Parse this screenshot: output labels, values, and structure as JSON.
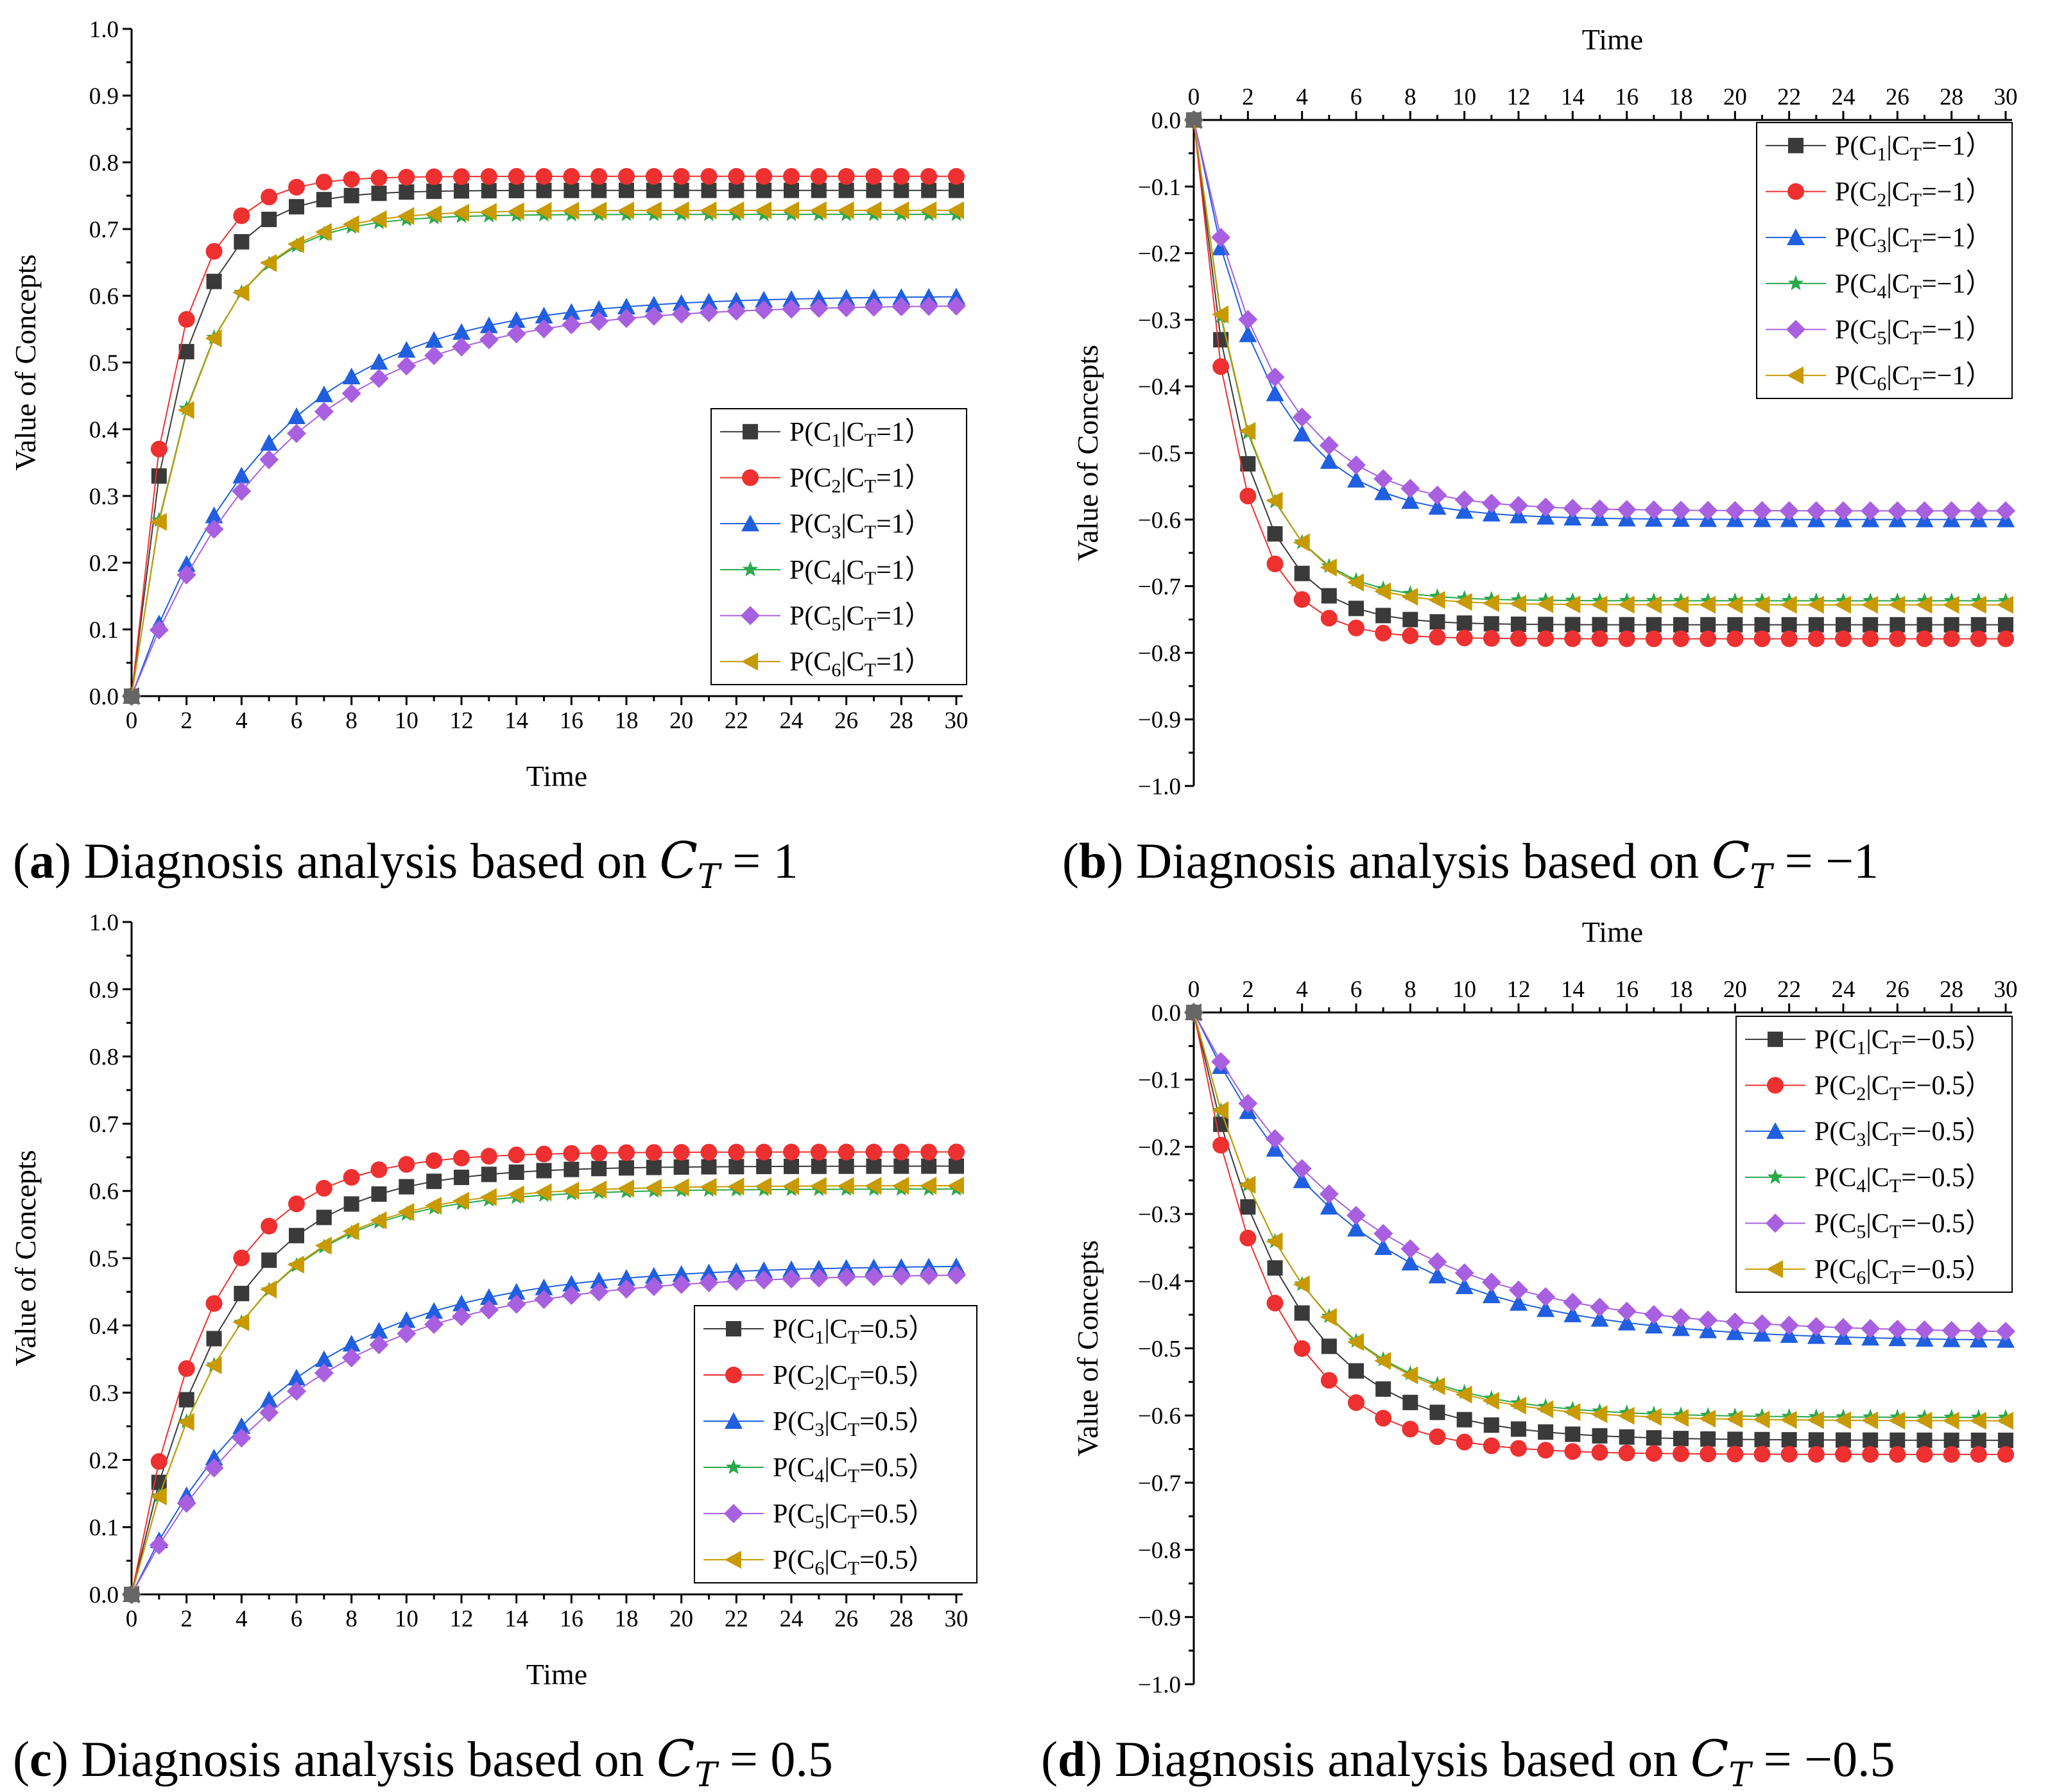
{
  "figure": {
    "x_axis_title": "Time",
    "y_axis_title": "Value of Concepts"
  },
  "colors": {
    "C1": "#3a3a3a",
    "C2": "#ee3030",
    "C3": "#1f5fe0",
    "C4": "#2aa84a",
    "C5": "#a860e0",
    "C6": "#c89a00"
  },
  "chart_data": [
    {
      "type": "line",
      "panel": "a",
      "caption": {
        "label": "a",
        "text": "Diagnosis analysis based on",
        "math": "C_T = 1"
      },
      "xlabel": "Time",
      "ylabel": "Value of Concepts",
      "xlim": [
        0,
        30
      ],
      "ylim": [
        0,
        1
      ],
      "x_ticks": [
        "0",
        "2",
        "4",
        "6",
        "8",
        "10",
        "12",
        "14",
        "16",
        "18",
        "20",
        "22",
        "24",
        "26",
        "28",
        "30"
      ],
      "y_ticks": [
        "0.0",
        "0.1",
        "0.2",
        "0.3",
        "0.4",
        "0.5",
        "0.6",
        "0.7",
        "0.8",
        "0.9",
        "1.0"
      ],
      "legend_position": "right-middle",
      "series": [
        {
          "name": "P(C1|CT=1)",
          "sub": "1",
          "cond": "=1",
          "color_key": "C1",
          "marker": "square",
          "final": 0.758,
          "tau": 1.75
        },
        {
          "name": "P(C2|CT=1)",
          "sub": "2",
          "cond": "=1",
          "color_key": "C2",
          "marker": "circle",
          "final": 0.779,
          "tau": 1.55
        },
        {
          "name": "P(C3|CT=1)",
          "sub": "3",
          "cond": "=1",
          "color_key": "C3",
          "marker": "triangle-up",
          "final": 0.6,
          "tau": 5.0
        },
        {
          "name": "P(C4|CT=1)",
          "sub": "4",
          "cond": "=1",
          "color_key": "C4",
          "marker": "star",
          "final": 0.722,
          "tau": 2.2
        },
        {
          "name": "P(C5|CT=1)",
          "sub": "5",
          "cond": "=1",
          "color_key": "C5",
          "marker": "diamond",
          "final": 0.587,
          "tau": 5.4
        },
        {
          "name": "P(C6|CT=1)",
          "sub": "6",
          "cond": "=1",
          "color_key": "C6",
          "marker": "triangle-left",
          "final": 0.728,
          "tau": 2.25
        }
      ]
    },
    {
      "type": "line",
      "panel": "b",
      "caption": {
        "label": "b",
        "text": "Diagnosis analysis based on",
        "math": "C_T = −1"
      },
      "xlabel": "Time",
      "ylabel": "Value of Concepts",
      "xlim": [
        0,
        30
      ],
      "ylim": [
        -1,
        0
      ],
      "x_ticks": [
        "0",
        "2",
        "4",
        "6",
        "8",
        "10",
        "12",
        "14",
        "16",
        "18",
        "20",
        "22",
        "24",
        "26",
        "28",
        "30"
      ],
      "y_ticks": [
        "0.0",
        "−0.1",
        "−0.2",
        "−0.3",
        "−0.4",
        "−0.5",
        "−0.6",
        "−0.7",
        "−0.8",
        "−0.9",
        "−1.0"
      ],
      "legend_position": "top-right",
      "series": [
        {
          "name": "P(C1|CT=-1)",
          "sub": "1",
          "cond": "=−1",
          "color_key": "C1",
          "marker": "square",
          "final": -0.758,
          "tau": 1.75
        },
        {
          "name": "P(C2|CT=-1)",
          "sub": "2",
          "cond": "=−1",
          "color_key": "C2",
          "marker": "circle",
          "final": -0.779,
          "tau": 1.55
        },
        {
          "name": "P(C3|CT=-1)",
          "sub": "3",
          "cond": "=−1",
          "color_key": "C3",
          "marker": "triangle-up",
          "final": -0.6,
          "tau": 2.6
        },
        {
          "name": "P(C4|CT=-1)",
          "sub": "4",
          "cond": "=−1",
          "color_key": "C4",
          "marker": "star",
          "final": -0.722,
          "tau": 1.9
        },
        {
          "name": "P(C5|CT=-1)",
          "sub": "5",
          "cond": "=−1",
          "color_key": "C5",
          "marker": "diamond",
          "final": -0.587,
          "tau": 2.8
        },
        {
          "name": "P(C6|CT=-1)",
          "sub": "6",
          "cond": "=−1",
          "color_key": "C6",
          "marker": "triangle-left",
          "final": -0.728,
          "tau": 1.95
        }
      ]
    },
    {
      "type": "line",
      "panel": "c",
      "caption": {
        "label": "c",
        "text": "Diagnosis analysis based on",
        "math": "C_T = 0.5"
      },
      "xlabel": "Time",
      "ylabel": "Value of Concepts",
      "xlim": [
        0,
        30
      ],
      "ylim": [
        0,
        1
      ],
      "x_ticks": [
        "0",
        "2",
        "4",
        "6",
        "8",
        "10",
        "12",
        "14",
        "16",
        "18",
        "20",
        "22",
        "24",
        "26",
        "28",
        "30"
      ],
      "y_ticks": [
        "0.0",
        "0.1",
        "0.2",
        "0.3",
        "0.4",
        "0.5",
        "0.6",
        "0.7",
        "0.8",
        "0.9",
        "1.0"
      ],
      "legend_position": "bottom-right",
      "series": [
        {
          "name": "P(C1|CT=0.5)",
          "sub": "1",
          "cond": "=0.5",
          "color_key": "C1",
          "marker": "square",
          "final": 0.637,
          "tau": 3.3
        },
        {
          "name": "P(C2|CT=0.5)",
          "sub": "2",
          "cond": "=0.5",
          "color_key": "C2",
          "marker": "circle",
          "final": 0.658,
          "tau": 2.8
        },
        {
          "name": "P(C3|CT=0.5)",
          "sub": "3",
          "cond": "=0.5",
          "color_key": "C3",
          "marker": "triangle-up",
          "final": 0.49,
          "tau": 5.6
        },
        {
          "name": "P(C4|CT=0.5)",
          "sub": "4",
          "cond": "=0.5",
          "color_key": "C4",
          "marker": "star",
          "final": 0.603,
          "tau": 3.6
        },
        {
          "name": "P(C5|CT=0.5)",
          "sub": "5",
          "cond": "=0.5",
          "color_key": "C5",
          "marker": "diamond",
          "final": 0.478,
          "tau": 6.0
        },
        {
          "name": "P(C6|CT=0.5)",
          "sub": "6",
          "cond": "=0.5",
          "color_key": "C6",
          "marker": "triangle-left",
          "final": 0.608,
          "tau": 3.65
        }
      ]
    },
    {
      "type": "line",
      "panel": "d",
      "caption": {
        "label": "d",
        "text": "Diagnosis analysis based on",
        "math": "C_T = −0.5"
      },
      "xlabel": "Time",
      "ylabel": "Value of Concepts",
      "xlim": [
        0,
        30
      ],
      "ylim": [
        -1,
        0
      ],
      "x_ticks": [
        "0",
        "2",
        "4",
        "6",
        "8",
        "10",
        "12",
        "14",
        "16",
        "18",
        "20",
        "22",
        "24",
        "26",
        "28",
        "30"
      ],
      "y_ticks": [
        "0.0",
        "−0.1",
        "−0.2",
        "−0.3",
        "−0.4",
        "−0.5",
        "−0.6",
        "−0.7",
        "−0.8",
        "−0.9",
        "−1.0"
      ],
      "legend_position": "top-right",
      "series": [
        {
          "name": "P(C1|CT=-0.5)",
          "sub": "1",
          "cond": "=−0.5",
          "color_key": "C1",
          "marker": "square",
          "final": -0.637,
          "tau": 3.3
        },
        {
          "name": "P(C2|CT=-0.5)",
          "sub": "2",
          "cond": "=−0.5",
          "color_key": "C2",
          "marker": "circle",
          "final": -0.658,
          "tau": 2.8
        },
        {
          "name": "P(C3|CT=-0.5)",
          "sub": "3",
          "cond": "=−0.5",
          "color_key": "C3",
          "marker": "triangle-up",
          "final": -0.49,
          "tau": 5.6
        },
        {
          "name": "P(C4|CT=-0.5)",
          "sub": "4",
          "cond": "=−0.5",
          "color_key": "C4",
          "marker": "star",
          "final": -0.603,
          "tau": 3.6
        },
        {
          "name": "P(C5|CT=-0.5)",
          "sub": "5",
          "cond": "=−0.5",
          "color_key": "C5",
          "marker": "diamond",
          "final": -0.478,
          "tau": 6.0
        },
        {
          "name": "P(C6|CT=-0.5)",
          "sub": "6",
          "cond": "=−0.5",
          "color_key": "C6",
          "marker": "triangle-left",
          "final": -0.608,
          "tau": 3.65
        }
      ]
    }
  ]
}
